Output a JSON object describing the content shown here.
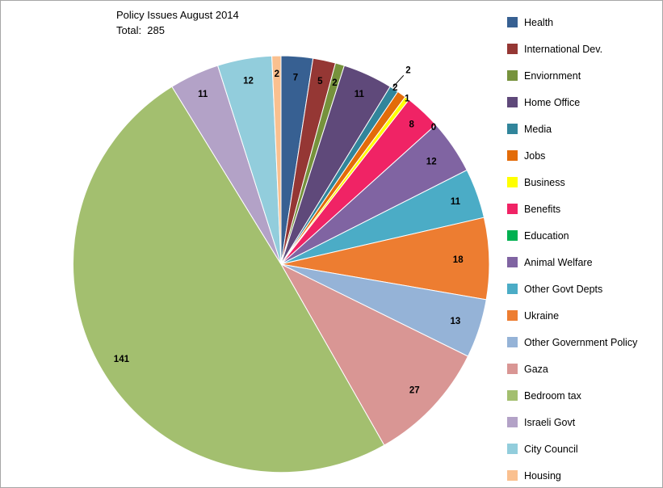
{
  "chart_data": {
    "type": "pie",
    "title": "Policy Issues August 2014",
    "total_label": "Total:  285",
    "total": 285,
    "legend_position": "right",
    "start_angle_deg": 0,
    "direction": "clockwise",
    "label_style": "value",
    "slices": [
      {
        "label": "Health",
        "value": 7,
        "color": "#376092"
      },
      {
        "label": "International Dev.",
        "value": 5,
        "color": "#953734"
      },
      {
        "label": "Enviornment",
        "value": 2,
        "color": "#76923C"
      },
      {
        "label": "Home Office",
        "value": 11,
        "color": "#5F497A"
      },
      {
        "label": "Media",
        "value": 2,
        "color": "#31859B"
      },
      {
        "label": "Jobs",
        "value": 2,
        "color": "#E36C09"
      },
      {
        "label": "Business",
        "value": 1,
        "color": "#FFFF00"
      },
      {
        "label": "Benefits",
        "value": 8,
        "color": "#F02365"
      },
      {
        "label": "Education",
        "value": 0,
        "color": "#00B050"
      },
      {
        "label": "Animal Welfare",
        "value": 12,
        "color": "#8064A2"
      },
      {
        "label": "Other Govt Depts",
        "value": 11,
        "color": "#4BACC6"
      },
      {
        "label": "Ukraine",
        "value": 18,
        "color": "#ED7D31"
      },
      {
        "label": "Other Government Policy",
        "value": 13,
        "color": "#95B3D7"
      },
      {
        "label": "Gaza",
        "value": 27,
        "color": "#D99694"
      },
      {
        "label": "Bedroom tax",
        "value": 141,
        "color": "#A3BF6F"
      },
      {
        "label": "Israeli Govt",
        "value": 11,
        "color": "#B3A2C7"
      },
      {
        "label": "City Council",
        "value": 12,
        "color": "#92CDDC"
      },
      {
        "label": "Housing",
        "value": 2,
        "color": "#FAC08F"
      }
    ]
  }
}
